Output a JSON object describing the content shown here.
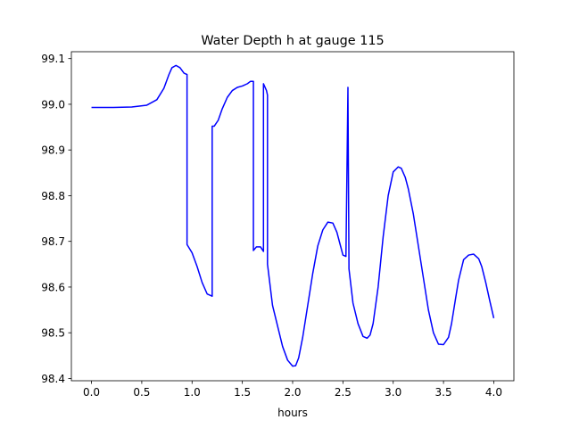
{
  "chart_data": {
    "type": "line",
    "title": "Water Depth h at gauge 115",
    "xlabel": "hours",
    "ylabel": "",
    "xlim": [
      -0.2,
      4.2
    ],
    "ylim": [
      98.395,
      99.115
    ],
    "xticks": [
      0.0,
      0.5,
      1.0,
      1.5,
      2.0,
      2.5,
      3.0,
      3.5,
      4.0
    ],
    "xtick_labels": [
      "0.0",
      "0.5",
      "1.0",
      "1.5",
      "2.0",
      "2.5",
      "3.0",
      "3.5",
      "4.0"
    ],
    "yticks": [
      98.4,
      98.5,
      98.6,
      98.7,
      98.8,
      98.9,
      99.0,
      99.1
    ],
    "ytick_labels": [
      "98.4",
      "98.5",
      "98.6",
      "98.7",
      "98.8",
      "98.9",
      "99.0",
      "99.1"
    ],
    "grid": false,
    "color": "#0000ff",
    "series": [
      {
        "x": [
          0.0,
          0.2,
          0.4,
          0.55,
          0.65,
          0.72,
          0.77,
          0.8,
          0.84,
          0.88,
          0.92,
          0.95,
          0.95,
          1.0,
          1.05,
          1.1,
          1.15,
          1.2,
          1.2,
          1.22,
          1.26,
          1.3,
          1.35,
          1.4,
          1.45,
          1.5,
          1.55,
          1.58,
          1.61,
          1.61,
          1.64,
          1.68,
          1.71,
          1.71,
          1.74,
          1.75,
          1.75,
          1.8,
          1.9,
          1.95,
          2.0,
          2.03,
          2.06,
          2.1,
          2.15,
          2.2,
          2.25,
          2.3,
          2.35,
          2.4,
          2.44,
          2.47,
          2.5,
          2.53,
          2.55,
          2.55,
          2.56,
          2.56,
          2.6,
          2.65,
          2.7,
          2.74,
          2.77,
          2.8,
          2.85,
          2.9,
          2.95,
          3.0,
          3.05,
          3.08,
          3.12,
          3.15,
          3.2,
          3.25,
          3.3,
          3.35,
          3.4,
          3.45,
          3.5,
          3.55,
          3.58,
          3.62,
          3.65,
          3.7,
          3.75,
          3.8,
          3.85,
          3.88,
          3.92,
          3.96,
          4.0
        ],
        "y": [
          98.993,
          98.993,
          98.994,
          98.998,
          99.01,
          99.035,
          99.065,
          99.08,
          99.085,
          99.08,
          99.068,
          99.065,
          98.693,
          98.675,
          98.645,
          98.61,
          98.585,
          98.58,
          98.952,
          98.952,
          98.965,
          98.99,
          99.015,
          99.03,
          99.037,
          99.04,
          99.045,
          99.05,
          99.05,
          98.68,
          98.688,
          98.688,
          98.678,
          99.045,
          99.03,
          99.02,
          98.65,
          98.56,
          98.47,
          98.44,
          98.427,
          98.428,
          98.445,
          98.49,
          98.56,
          98.63,
          98.69,
          98.725,
          98.742,
          98.74,
          98.72,
          98.695,
          98.67,
          98.667,
          99.037,
          99.025,
          98.65,
          98.64,
          98.565,
          98.52,
          98.492,
          98.488,
          98.495,
          98.52,
          98.6,
          98.71,
          98.8,
          98.852,
          98.863,
          98.86,
          98.84,
          98.815,
          98.76,
          98.69,
          98.62,
          98.55,
          98.5,
          98.475,
          98.474,
          98.49,
          98.52,
          98.575,
          98.615,
          98.66,
          98.67,
          98.672,
          98.662,
          98.645,
          98.61,
          98.57,
          98.532
        ]
      }
    ]
  }
}
